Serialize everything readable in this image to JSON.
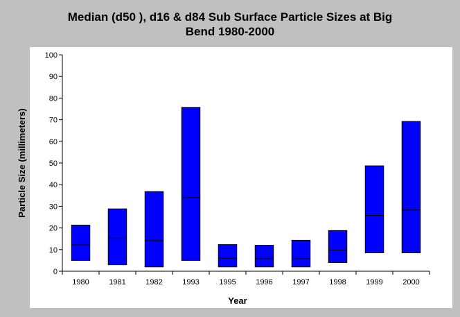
{
  "chart_data": {
    "type": "bar",
    "title_lines": [
      "Median (d50 ), d16 & d84 Sub Surface Particle Sizes at Big",
      "Bend 1980-2000"
    ],
    "xlabel": "Year",
    "ylabel": "Particle Size (millimeters)",
    "categories": [
      "1980",
      "1981",
      "1982",
      "1993",
      "1995",
      "1996",
      "1997",
      "1998",
      "1999",
      "2000"
    ],
    "series": [
      {
        "name": "d16",
        "values": [
          5,
          3,
          2,
          5,
          2,
          2,
          2,
          4,
          8.5,
          8.5
        ]
      },
      {
        "name": "d50",
        "values": [
          12.2,
          15.3,
          14.2,
          34,
          6,
          5.8,
          5.8,
          9.8,
          25.8,
          28.3
        ]
      },
      {
        "name": "d84",
        "values": [
          21.3,
          28.8,
          36.8,
          75.7,
          12.3,
          12,
          14.3,
          18.8,
          48.7,
          69.2
        ]
      }
    ],
    "ylim": [
      0,
      100
    ],
    "yticks": [
      "0",
      "10",
      "20",
      "30",
      "40",
      "50",
      "60",
      "70",
      "80",
      "90",
      "100"
    ],
    "grid": false,
    "colors": {
      "bar_fill": "#0000ff",
      "bar_stroke": "#000000",
      "plot_bg": "#ffffff",
      "page_bg": "#c0c0c0"
    }
  }
}
